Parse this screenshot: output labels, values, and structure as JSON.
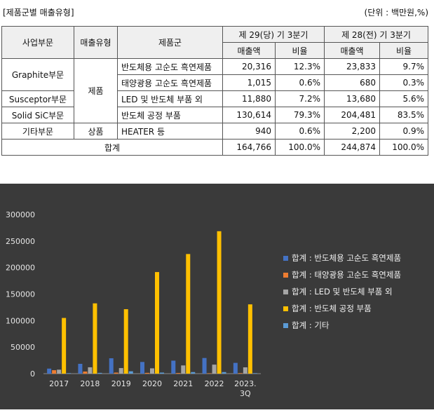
{
  "header": {
    "title": "[제품군별 매출유형]",
    "unit": "(단위 : 백만원,%)"
  },
  "table": {
    "col_business": "사업부문",
    "col_sales_type": "매출유형",
    "col_product_group": "제품군",
    "period_current": "제 29(당) 기 3분기",
    "period_prior": "제 28(전) 기 3분기",
    "sub_amount": "매출액",
    "sub_ratio": "비율",
    "sales_type_product": "제품",
    "sales_type_goods": "상품",
    "rows": [
      {
        "business": "Graphite부문",
        "product_group": "반도체용 고순도 흑연제품",
        "cur_amount": "20,316",
        "cur_ratio": "12.3%",
        "prev_amount": "23,833",
        "prev_ratio": "9.7%"
      },
      {
        "business": "",
        "product_group": "태양광용 고순도 흑연제품",
        "cur_amount": "1,015",
        "cur_ratio": "0.6%",
        "prev_amount": "680",
        "prev_ratio": "0.3%"
      },
      {
        "business": "Susceptor부문",
        "product_group": "LED 및 반도체 부품 외",
        "cur_amount": "11,880",
        "cur_ratio": "7.2%",
        "prev_amount": "13,680",
        "prev_ratio": "5.6%"
      },
      {
        "business": "Solid SiC부문",
        "product_group": "반도체 공정 부품",
        "cur_amount": "130,614",
        "cur_ratio": "79.3%",
        "prev_amount": "204,481",
        "prev_ratio": "83.5%"
      },
      {
        "business": "기타부문",
        "product_group": "HEATER 등",
        "cur_amount": "940",
        "cur_ratio": "0.6%",
        "prev_amount": "2,200",
        "prev_ratio": "0.9%"
      }
    ],
    "total": {
      "label": "합계",
      "cur_amount": "164,766",
      "cur_ratio": "100.0%",
      "prev_amount": "244,874",
      "prev_ratio": "100.0%"
    }
  },
  "chart_data": {
    "type": "bar",
    "categories": [
      "2017",
      "2018",
      "2019",
      "2020",
      "2021",
      "2022",
      "2023.\n3Q"
    ],
    "ylim": [
      0,
      300000
    ],
    "yticks": [
      0,
      50000,
      100000,
      150000,
      200000,
      250000,
      300000
    ],
    "ytick_labels": [
      "0",
      "50000",
      "100000",
      "150000",
      "200000",
      "250000",
      "300000"
    ],
    "legend_position": "right",
    "grid": false,
    "background": "#3a3a3a",
    "series": [
      {
        "name": "합계 : 반도체용 고순도 흑연제품",
        "color": "#4472c4",
        "values": [
          9500,
          18500,
          29000,
          22000,
          24500,
          29500,
          20316
        ]
      },
      {
        "name": "합계 : 태양광용 고순도 흑연제품",
        "color": "#ed7d31",
        "values": [
          6500,
          4000,
          2000,
          1500,
          1200,
          800,
          1015
        ]
      },
      {
        "name": "합계 : LED  및 반도체 부품 외",
        "color": "#a5a5a5",
        "values": [
          7500,
          12000,
          10500,
          10000,
          15500,
          17000,
          11880
        ]
      },
      {
        "name": "합계 : 반도체 공정 부품",
        "color": "#ffc000",
        "values": [
          105000,
          132500,
          121500,
          191500,
          225500,
          268500,
          130614
        ]
      },
      {
        "name": "합계 : 기타",
        "color": "#5b9bd5",
        "values": [
          1000,
          1500,
          4500,
          2000,
          3000,
          3000,
          940
        ]
      }
    ]
  }
}
